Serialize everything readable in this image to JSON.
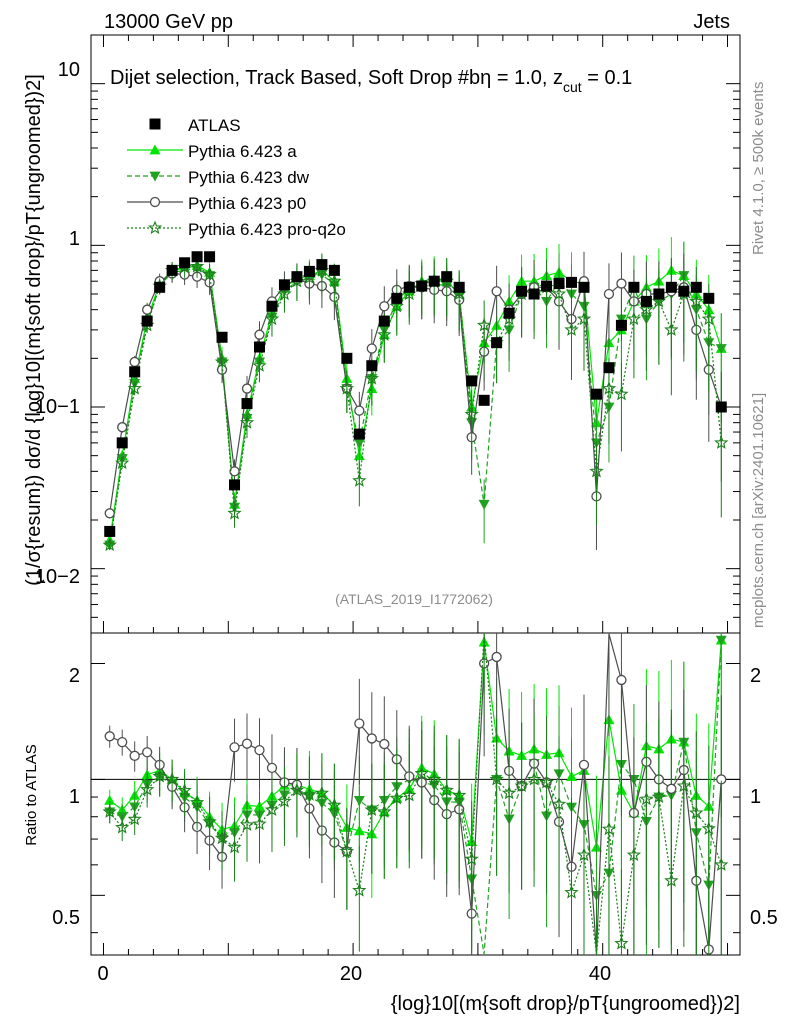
{
  "header": {
    "energy_label": "13000 GeV pp",
    "process_label": "Jets",
    "subtitle": "Dijet selection, Track Based, Soft Drop #bη = 1.0, z",
    "subtitle_sub": "cut",
    "subtitle_tail": " = 0.1",
    "side_label_top": "Rivet 4.1.0, ≥ 500k events",
    "side_label_bottom": "mcplots.cern.ch [arXiv:2401.10621]",
    "analysis_tag": "(ATLAS_2019_I1772062)"
  },
  "axes": {
    "main_ylabel": "(1/σ{resum}) dσ/d {log}10[(m{soft drop}/pT{ungroomed})2]",
    "ratio_ylabel": "Ratio to ATLAS",
    "xlabel": "{log}10[(m{soft drop}/pT{ungroomed})2]",
    "main_yticks": [
      "10",
      "1",
      "10−1",
      "10−2"
    ],
    "ratio_yticks": [
      "2",
      "1",
      "0.5"
    ],
    "xticks": [
      "0",
      "20",
      "40"
    ]
  },
  "colors": {
    "data": "#000000",
    "pythia_a": "#00e600",
    "pythia_dw": "#1fa21f",
    "pythia_p0": "#4d4d4d",
    "pythia_pro": "#1a7f1a"
  },
  "chart_data": {
    "type": "line",
    "title": "Dijet selection, Track Based, Soft Drop η = 1.0, z_cut = 0.1",
    "xlabel": "{log}10[(m{soft drop}/pT{ungroomed})2]",
    "ylabel": "(1/σ_resum) dσ/d {log}10[(m_soft drop/pT_ungroomed)2]",
    "yscale": "log",
    "xlim": [
      -1,
      51
    ],
    "ylim": [
      0.004,
      20
    ],
    "ratio_ylim": [
      0.35,
      2.4
    ],
    "legend": [
      "ATLAS",
      "Pythia 6.423 a",
      "Pythia 6.423 dw",
      "Pythia 6.423 p0",
      "Pythia 6.423 pro-q2o"
    ],
    "legend_position": "top-left",
    "x": [
      0.5,
      1.5,
      2.5,
      3.5,
      4.5,
      5.5,
      6.5,
      7.5,
      8.5,
      9.5,
      10.5,
      11.5,
      12.5,
      13.5,
      14.5,
      15.5,
      16.5,
      17.5,
      18.5,
      19.5,
      20.5,
      21.5,
      22.5,
      23.5,
      24.5,
      25.5,
      26.5,
      27.5,
      28.5,
      29.5,
      30.5,
      31.5,
      32.5,
      33.5,
      34.5,
      35.5,
      36.5,
      37.5,
      38.5,
      39.5,
      40.5,
      41.5,
      42.5,
      43.5,
      44.5,
      45.5,
      46.5,
      47.5,
      48.5,
      49.5
    ],
    "series": [
      {
        "name": "ATLAS",
        "marker": "square",
        "values": [
          0.017,
          0.06,
          0.165,
          0.34,
          0.55,
          0.7,
          0.78,
          0.85,
          0.85,
          0.27,
          0.033,
          0.105,
          0.235,
          0.42,
          0.57,
          0.64,
          0.69,
          0.76,
          0.7,
          0.2,
          0.068,
          0.18,
          0.34,
          0.47,
          0.55,
          0.56,
          0.6,
          0.64,
          0.55,
          0.145,
          0.11,
          0.25,
          0.38,
          0.52,
          0.5,
          0.56,
          0.58,
          0.59,
          0.55,
          0.12,
          0.175,
          0.32,
          0.55,
          0.45,
          0.5,
          0.55,
          0.52,
          0.55,
          0.47,
          0.1
        ]
      },
      {
        "name": "Pythia 6.423 a",
        "marker": "triangle-up",
        "values": [
          0.015,
          0.05,
          0.15,
          0.35,
          0.58,
          0.7,
          0.72,
          0.75,
          0.68,
          0.2,
          0.025,
          0.09,
          0.2,
          0.38,
          0.55,
          0.62,
          0.65,
          0.7,
          0.6,
          0.15,
          0.05,
          0.13,
          0.28,
          0.42,
          0.52,
          0.6,
          0.62,
          0.6,
          0.5,
          0.1,
          0.25,
          0.32,
          0.45,
          0.6,
          0.6,
          0.65,
          0.68,
          0.6,
          0.58,
          0.08,
          0.25,
          0.3,
          0.45,
          0.55,
          0.6,
          0.7,
          0.65,
          0.5,
          0.4,
          0.23
        ]
      },
      {
        "name": "Pythia 6.423 dw",
        "marker": "triangle-down",
        "values": [
          0.014,
          0.048,
          0.14,
          0.33,
          0.56,
          0.68,
          0.7,
          0.72,
          0.65,
          0.19,
          0.024,
          0.085,
          0.19,
          0.36,
          0.52,
          0.6,
          0.62,
          0.66,
          0.57,
          0.13,
          0.06,
          0.15,
          0.3,
          0.45,
          0.55,
          0.55,
          0.58,
          0.56,
          0.48,
          0.08,
          0.025,
          0.25,
          0.3,
          0.5,
          0.55,
          0.45,
          0.6,
          0.5,
          0.42,
          0.06,
          0.1,
          0.35,
          0.55,
          0.35,
          0.45,
          0.5,
          0.65,
          0.4,
          0.25,
          0.23
        ]
      },
      {
        "name": "Pythia 6.423 p0",
        "marker": "circle-open",
        "values": [
          0.022,
          0.075,
          0.19,
          0.4,
          0.6,
          0.67,
          0.66,
          0.64,
          0.59,
          0.17,
          0.04,
          0.13,
          0.28,
          0.45,
          0.56,
          0.62,
          0.58,
          0.56,
          0.48,
          0.13,
          0.095,
          0.23,
          0.42,
          0.53,
          0.56,
          0.55,
          0.53,
          0.52,
          0.46,
          0.065,
          0.22,
          0.52,
          0.4,
          0.5,
          0.55,
          0.55,
          0.45,
          0.35,
          0.6,
          0.028,
          0.5,
          0.58,
          0.45,
          0.5,
          0.5,
          0.52,
          0.55,
          0.3,
          0.17,
          0.1
        ]
      },
      {
        "name": "Pythia 6.423 pro-q2o",
        "marker": "star-open",
        "values": [
          0.014,
          0.045,
          0.13,
          0.32,
          0.56,
          0.7,
          0.73,
          0.74,
          0.66,
          0.19,
          0.022,
          0.08,
          0.18,
          0.35,
          0.5,
          0.6,
          0.63,
          0.7,
          0.6,
          0.13,
          0.035,
          0.15,
          0.28,
          0.42,
          0.5,
          0.58,
          0.6,
          0.6,
          0.5,
          0.09,
          0.32,
          0.25,
          0.35,
          0.5,
          0.5,
          0.55,
          0.5,
          0.3,
          0.35,
          0.04,
          0.13,
          0.12,
          0.35,
          0.4,
          0.45,
          0.3,
          0.5,
          0.45,
          0.35,
          0.06
        ]
      }
    ]
  }
}
